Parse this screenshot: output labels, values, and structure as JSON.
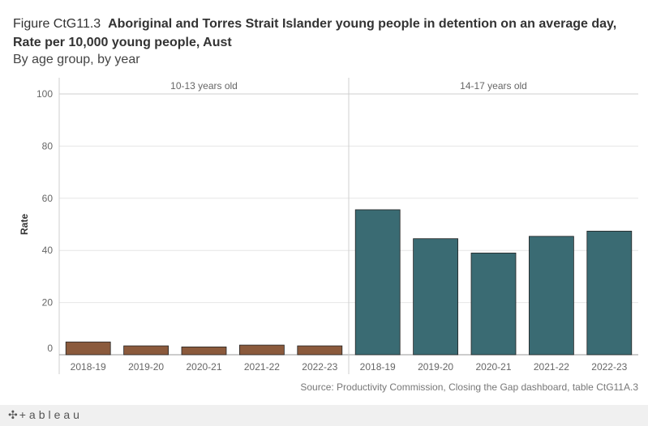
{
  "header": {
    "figure_prefix": "Figure CtG11.3",
    "title": "Aboriginal and Torres Strait Islander young people in detention on an average day, Rate per 10,000 young people, Aust",
    "subtitle": "By age group, by year"
  },
  "source": "Source: Productivity Commission, Closing the Gap dashboard, table CtG11A.3",
  "footer": {
    "logo_text": "+ableau",
    "logo_icon": "tableau-logo-icon"
  },
  "colors": {
    "group1": "#8b5a3c",
    "group2": "#3a6b73",
    "grid": "#e6e6e6",
    "axis": "#cfcfcf"
  },
  "chart_data": {
    "type": "bar",
    "ylabel": "Rate",
    "ylim": [
      0,
      100
    ],
    "yticks": [
      0,
      20,
      40,
      60,
      80,
      100
    ],
    "panels": [
      {
        "name": "10-13 years old",
        "categories": [
          "2018-19",
          "2019-20",
          "2020-21",
          "2021-22",
          "2022-23"
        ],
        "values": [
          4.9,
          3.4,
          3.0,
          3.7,
          3.4
        ],
        "color": "#8b5a3c"
      },
      {
        "name": "14-17 years old",
        "categories": [
          "2018-19",
          "2019-20",
          "2020-21",
          "2021-22",
          "2022-23"
        ],
        "values": [
          55.6,
          44.5,
          39.0,
          45.4,
          47.4
        ],
        "color": "#3a6b73"
      }
    ]
  }
}
